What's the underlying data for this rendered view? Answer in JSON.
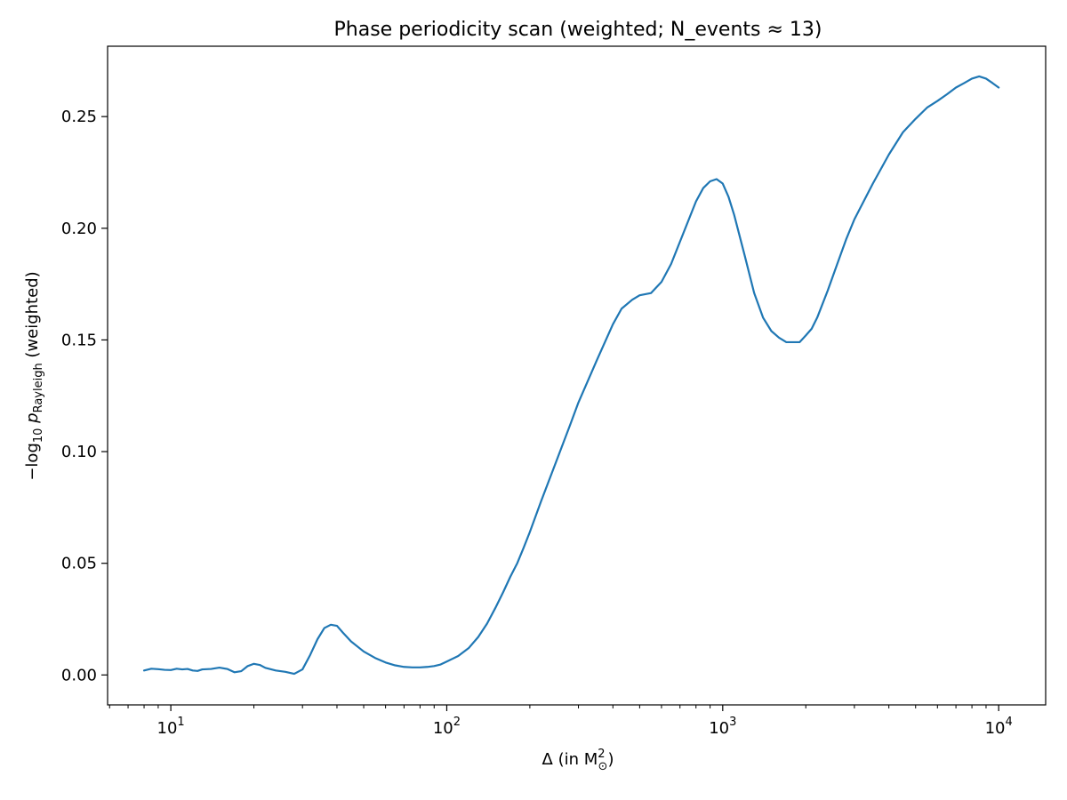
{
  "chart_data": {
    "type": "line",
    "title": "Phase periodicity scan (weighted; N_events ≈ 13)",
    "xlabel": {
      "prefix": "Δ (in M",
      "sup": "2",
      "sub": "⊙",
      "suffix": ")"
    },
    "ylabel": {
      "prefix": "−log",
      "sub1": "10",
      "p": " p",
      "sub2": "Rayleigh",
      "suffix": " (weighted)"
    },
    "x_scale": "log",
    "xlim": [
      5.9,
      14800
    ],
    "ylim": [
      -0.0134,
      0.2815
    ],
    "x_ticks": [
      {
        "value": 10,
        "base": "10",
        "exp": "1"
      },
      {
        "value": 100,
        "base": "10",
        "exp": "2"
      },
      {
        "value": 1000,
        "base": "10",
        "exp": "3"
      },
      {
        "value": 10000,
        "base": "10",
        "exp": "4"
      }
    ],
    "y_ticks": [
      {
        "value": 0.0,
        "label": "0.00"
      },
      {
        "value": 0.05,
        "label": "0.05"
      },
      {
        "value": 0.1,
        "label": "0.10"
      },
      {
        "value": 0.15,
        "label": "0.15"
      },
      {
        "value": 0.2,
        "label": "0.20"
      },
      {
        "value": 0.25,
        "label": "0.25"
      }
    ],
    "grid": false,
    "line_color": "#1f77b4",
    "series": [
      {
        "x": [
          8,
          8.5,
          9,
          9.5,
          10,
          10.5,
          11,
          11.5,
          12,
          12.5,
          13,
          14,
          15,
          16,
          17,
          18,
          19,
          20,
          21,
          22,
          24,
          26,
          28,
          30,
          32,
          34,
          36,
          38,
          40,
          42,
          45,
          50,
          55,
          60,
          65,
          70,
          75,
          80,
          85,
          90,
          95,
          100,
          110,
          120,
          130,
          140,
          150,
          160,
          170,
          180,
          190,
          200,
          220,
          250,
          280,
          300,
          350,
          400,
          430,
          470,
          500,
          550,
          600,
          650,
          700,
          800,
          850,
          900,
          950,
          1000,
          1050,
          1100,
          1200,
          1300,
          1400,
          1500,
          1600,
          1700,
          1800,
          1900,
          2000,
          2100,
          2200,
          2400,
          2600,
          2800,
          3000,
          3500,
          4000,
          4500,
          5000,
          5500,
          6000,
          6500,
          7000,
          7500,
          8000,
          8500,
          9000,
          9500,
          10000
        ],
        "y": [
          0.002,
          0.0028,
          0.0026,
          0.0023,
          0.0022,
          0.0028,
          0.0025,
          0.0027,
          0.002,
          0.0018,
          0.0025,
          0.0027,
          0.0033,
          0.0027,
          0.0012,
          0.0017,
          0.004,
          0.005,
          0.0045,
          0.0032,
          0.002,
          0.0014,
          0.0005,
          0.0025,
          0.009,
          0.016,
          0.021,
          0.0225,
          0.022,
          0.019,
          0.015,
          0.0105,
          0.0076,
          0.0056,
          0.0043,
          0.0036,
          0.0034,
          0.0034,
          0.0036,
          0.004,
          0.0047,
          0.006,
          0.0085,
          0.012,
          0.017,
          0.023,
          0.03,
          0.037,
          0.044,
          0.05,
          0.057,
          0.064,
          0.078,
          0.096,
          0.112,
          0.122,
          0.141,
          0.157,
          0.164,
          0.168,
          0.17,
          0.171,
          0.176,
          0.184,
          0.194,
          0.212,
          0.218,
          0.221,
          0.222,
          0.22,
          0.214,
          0.206,
          0.188,
          0.171,
          0.16,
          0.154,
          0.151,
          0.149,
          0.149,
          0.149,
          0.152,
          0.155,
          0.16,
          0.172,
          0.184,
          0.195,
          0.204,
          0.22,
          0.233,
          0.243,
          0.249,
          0.254,
          0.257,
          0.26,
          0.263,
          0.265,
          0.267,
          0.268,
          0.267,
          0.265,
          0.263
        ]
      }
    ]
  }
}
